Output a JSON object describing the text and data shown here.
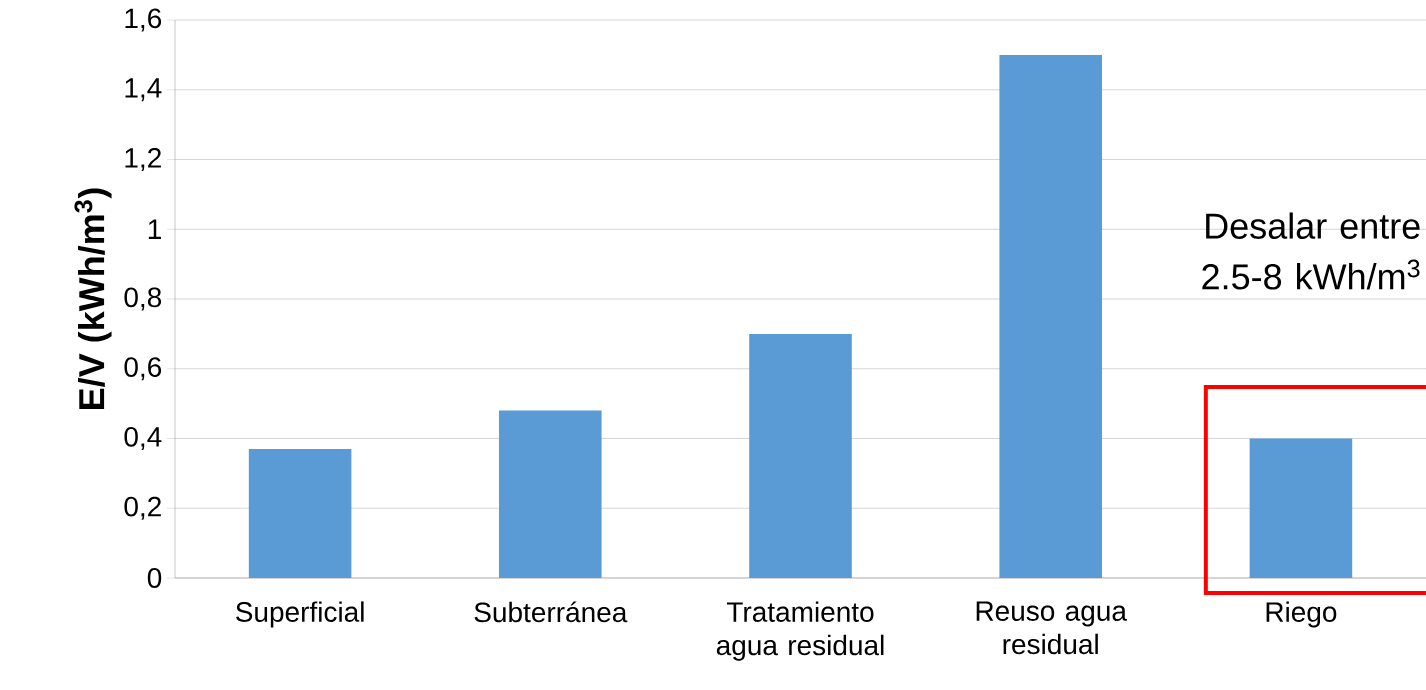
{
  "chart_data": {
    "type": "bar",
    "categories": [
      "Superficial",
      "Subterránea",
      "Tratamiento agua residual",
      "Reuso agua residual",
      "Riego"
    ],
    "values": [
      0.37,
      0.48,
      0.7,
      1.5,
      0.4
    ],
    "color": "#5b9bd5",
    "ylabel": "E/V (kWh/m$^{3}$)",
    "ylim": [
      0,
      1.6
    ],
    "yticks": [
      0,
      {
        "value": 0.2,
        "label": "0,2"
      },
      {
        "value": 0.4,
        "label": "0,4"
      },
      {
        "value": 0.6,
        "label": "0,6"
      },
      {
        "value": 0.8,
        "label": "0,8"
      },
      1,
      {
        "value": 1.2,
        "label": "1,2"
      },
      {
        "value": 1.4,
        "label": "1,4"
      },
      {
        "value": 1.6,
        "label": "1,6"
      }
    ],
    "grid": "y",
    "annotations": [
      "Desalar entre 2.5-8 kWh/m$^{3}$"
    ]
  }
}
